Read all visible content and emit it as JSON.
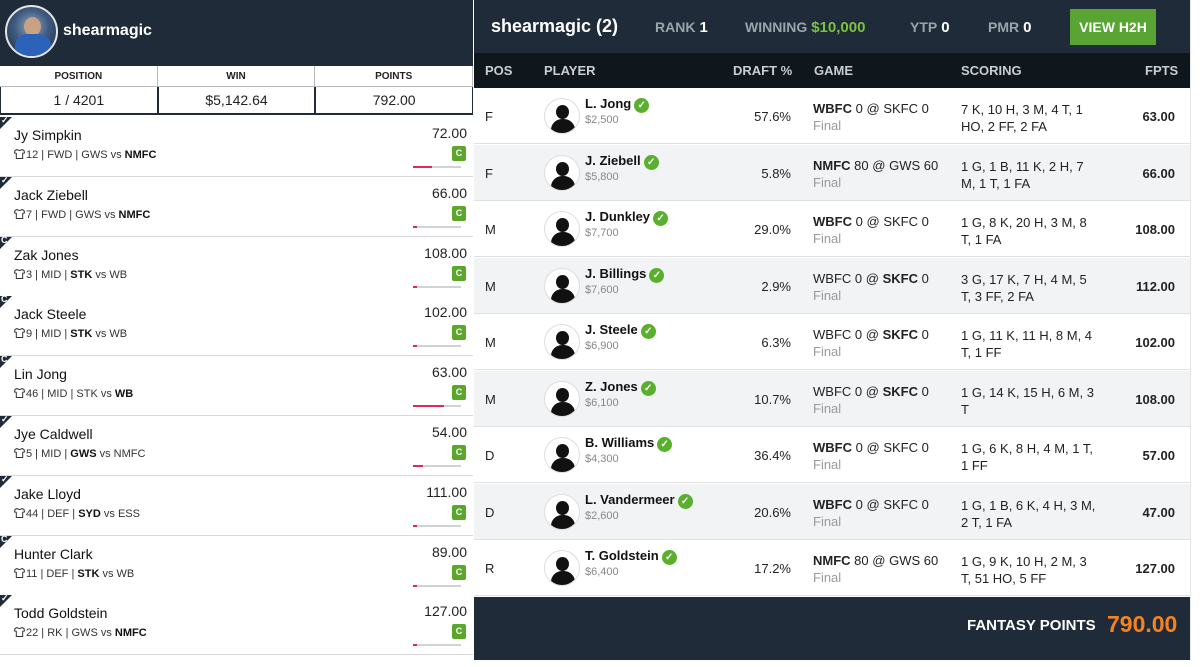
{
  "left": {
    "username": "shearmagic",
    "columns": [
      "POSITION",
      "WIN",
      "POINTS"
    ],
    "summary": {
      "position": "1 / 4201",
      "win": "$5,142.64",
      "points": "792.00"
    },
    "players": [
      {
        "name": "Jy Simpkin",
        "number": "12",
        "pos": "FWD",
        "home": "GWS",
        "vs": "vs",
        "away": "NMFC",
        "bold": "away",
        "points": "72.00",
        "badge": "C",
        "corner": "✓",
        "progress": 0.4
      },
      {
        "name": "Jack Ziebell",
        "number": "7",
        "pos": "FWD",
        "home": "GWS",
        "vs": "vs",
        "away": "NMFC",
        "bold": "away",
        "points": "66.00",
        "badge": "C",
        "corner": "✓",
        "progress": 0.08
      },
      {
        "name": "Zak Jones",
        "number": "3",
        "pos": "MID",
        "home": "STK",
        "vs": "vs",
        "away": "WB",
        "bold": "home",
        "points": "108.00",
        "badge": "C",
        "corner": "C",
        "progress": 0.08
      },
      {
        "name": "Jack Steele",
        "number": "9",
        "pos": "MID",
        "home": "STK",
        "vs": "vs",
        "away": "WB",
        "bold": "home",
        "points": "102.00",
        "badge": "C",
        "corner": "C",
        "progress": 0.08
      },
      {
        "name": "Lin Jong",
        "number": "46",
        "pos": "MID",
        "home": "STK",
        "vs": "vs",
        "away": "WB",
        "bold": "away",
        "points": "63.00",
        "badge": "C",
        "corner": "C",
        "progress": 0.65
      },
      {
        "name": "Jye Caldwell",
        "number": "5",
        "pos": "MID",
        "home": "GWS",
        "vs": "vs",
        "away": "NMFC",
        "bold": "home",
        "points": "54.00",
        "badge": "C",
        "corner": "✓",
        "progress": 0.2
      },
      {
        "name": "Jake Lloyd",
        "number": "44",
        "pos": "DEF",
        "home": "SYD",
        "vs": "vs",
        "away": "ESS",
        "bold": "home",
        "points": "111.00",
        "badge": "C",
        "corner": "✓",
        "progress": 0.08
      },
      {
        "name": "Hunter Clark",
        "number": "11",
        "pos": "DEF",
        "home": "STK",
        "vs": "vs",
        "away": "WB",
        "bold": "home",
        "points": "89.00",
        "badge": "C",
        "corner": "C",
        "progress": 0.08
      },
      {
        "name": "Todd Goldstein",
        "number": "22",
        "pos": "RK",
        "home": "GWS",
        "vs": "vs",
        "away": "NMFC",
        "bold": "away",
        "points": "127.00",
        "badge": "C",
        "corner": "✓",
        "progress": 0.08
      }
    ]
  },
  "right": {
    "username": "shearmagic (2)",
    "rank_label": "RANK",
    "rank": "1",
    "winning_label": "WINNING",
    "winning": "$10,000",
    "ytp_label": "YTP",
    "ytp": "0",
    "pmr_label": "PMR",
    "pmr": "0",
    "h2h_label": "VIEW H2H",
    "headers": {
      "pos": "POS",
      "player": "PLAYER",
      "draft": "DRAFT %",
      "game": "GAME",
      "scoring": "SCORING",
      "fpts": "FPTS"
    },
    "rows": [
      {
        "pos": "F",
        "name": "L. Jong",
        "salary": "$2,500",
        "draft": "57.6%",
        "t1": "WBFC",
        "s1": "0",
        "at": "@",
        "t2": "SKFC",
        "s2": "0",
        "bold": "t1",
        "status": "Final",
        "scoring": "7 K, 10 H, 3 M, 4 T, 1 HO, 2 FF, 2 FA",
        "fpts": "63.00"
      },
      {
        "pos": "F",
        "name": "J. Ziebell",
        "salary": "$5,800",
        "draft": "5.8%",
        "t1": "NMFC",
        "s1": "80",
        "at": "@",
        "t2": "GWS",
        "s2": "60",
        "bold": "t1",
        "status": "Final",
        "scoring": "1 G, 1 B, 11 K, 2 H, 7 M, 1 T, 1 FA",
        "fpts": "66.00"
      },
      {
        "pos": "M",
        "name": "J. Dunkley",
        "salary": "$7,700",
        "draft": "29.0%",
        "t1": "WBFC",
        "s1": "0",
        "at": "@",
        "t2": "SKFC",
        "s2": "0",
        "bold": "t1",
        "status": "Final",
        "scoring": "1 G, 8 K, 20 H, 3 M, 8 T, 1 FA",
        "fpts": "108.00"
      },
      {
        "pos": "M",
        "name": "J. Billings",
        "salary": "$7,600",
        "draft": "2.9%",
        "t1": "WBFC",
        "s1": "0",
        "at": "@",
        "t2": "SKFC",
        "s2": "0",
        "bold": "t2",
        "status": "Final",
        "scoring": "3 G, 17 K, 7 H, 4 M, 5 T, 3 FF, 2 FA",
        "fpts": "112.00"
      },
      {
        "pos": "M",
        "name": "J. Steele",
        "salary": "$6,900",
        "draft": "6.3%",
        "t1": "WBFC",
        "s1": "0",
        "at": "@",
        "t2": "SKFC",
        "s2": "0",
        "bold": "t2",
        "status": "Final",
        "scoring": "1 G, 11 K, 11 H, 8 M, 4 T, 1 FF",
        "fpts": "102.00"
      },
      {
        "pos": "M",
        "name": "Z. Jones",
        "salary": "$6,100",
        "draft": "10.7%",
        "t1": "WBFC",
        "s1": "0",
        "at": "@",
        "t2": "SKFC",
        "s2": "0",
        "bold": "t2",
        "status": "Final",
        "scoring": "1 G, 14 K, 15 H, 6 M, 3 T",
        "fpts": "108.00"
      },
      {
        "pos": "D",
        "name": "B. Williams",
        "salary": "$4,300",
        "draft": "36.4%",
        "t1": "WBFC",
        "s1": "0",
        "at": "@",
        "t2": "SKFC",
        "s2": "0",
        "bold": "t1",
        "status": "Final",
        "scoring": "1 G, 6 K, 8 H, 4 M, 1 T, 1 FF",
        "fpts": "57.00"
      },
      {
        "pos": "D",
        "name": "L. Vandermeer",
        "salary": "$2,600",
        "draft": "20.6%",
        "t1": "WBFC",
        "s1": "0",
        "at": "@",
        "t2": "SKFC",
        "s2": "0",
        "bold": "t1",
        "status": "Final",
        "scoring": "1 G, 1 B, 6 K, 4 H, 3 M, 2 T, 1 FA",
        "fpts": "47.00"
      },
      {
        "pos": "R",
        "name": "T. Goldstein",
        "salary": "$6,400",
        "draft": "17.2%",
        "t1": "NMFC",
        "s1": "80",
        "at": "@",
        "t2": "GWS",
        "s2": "60",
        "bold": "t1",
        "status": "Final",
        "scoring": "1 G, 9 K, 10 H, 2 M, 3 T, 51 HO, 5 FF",
        "fpts": "127.00"
      }
    ],
    "footer_label": "FANTASY POINTS",
    "footer_value": "790.00"
  },
  "icons": {
    "check": "✓",
    "shirt": "shirt-icon",
    "avatar": "player-silhouette-icon"
  },
  "colors": {
    "header_bg": "#1f2b38",
    "accent_green": "#58a533",
    "winning_green": "#7bc142",
    "progress_red": "#e4275a",
    "fantasy_orange": "#f58220"
  }
}
